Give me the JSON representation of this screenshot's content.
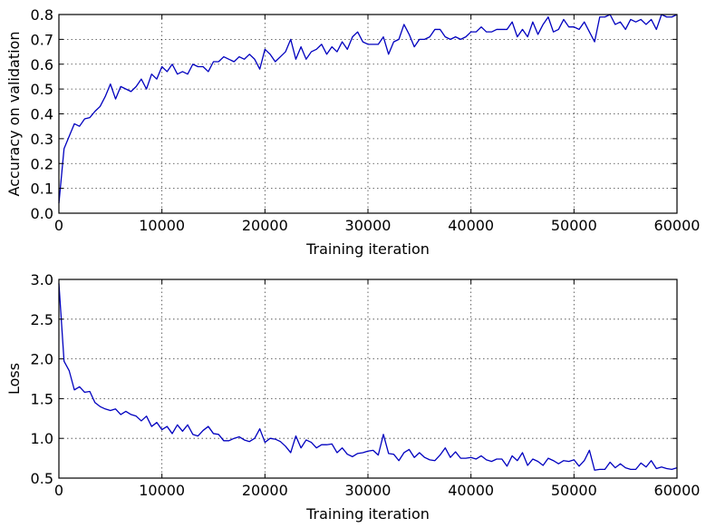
{
  "chart_data": [
    {
      "type": "line",
      "xlabel": "Training iteration",
      "ylabel": "Accuracy on validation",
      "xlim": [
        0,
        60000
      ],
      "ylim": [
        0,
        0.8
      ],
      "xticks": [
        0,
        10000,
        20000,
        30000,
        40000,
        50000,
        60000
      ],
      "xtick_labels": [
        "0",
        "10000",
        "20000",
        "30000",
        "40000",
        "50000",
        "60000"
      ],
      "yticks": [
        0,
        0.1,
        0.2,
        0.3,
        0.4,
        0.5,
        0.6,
        0.7,
        0.8
      ],
      "ytick_labels": [
        "0.0",
        "0.1",
        "0.2",
        "0.3",
        "0.4",
        "0.5",
        "0.6",
        "0.7",
        "0.8"
      ],
      "grid": true,
      "color": "#0000bf",
      "x": [
        0,
        500,
        1000,
        1500,
        2000,
        2500,
        3000,
        3500,
        4000,
        4500,
        5000,
        5500,
        6000,
        6500,
        7000,
        7500,
        8000,
        8500,
        9000,
        9500,
        10000,
        10500,
        11000,
        11500,
        12000,
        12500,
        13000,
        13500,
        14000,
        14500,
        15000,
        15500,
        16000,
        16500,
        17000,
        17500,
        18000,
        18500,
        19000,
        19500,
        20000,
        20500,
        21000,
        21500,
        22000,
        22500,
        23000,
        23500,
        24000,
        24500,
        25000,
        25500,
        26000,
        26500,
        27000,
        27500,
        28000,
        28500,
        29000,
        29500,
        30000,
        30500,
        31000,
        31500,
        32000,
        32500,
        33000,
        33500,
        34000,
        34500,
        35000,
        35500,
        36000,
        36500,
        37000,
        37500,
        38000,
        38500,
        39000,
        39500,
        40000,
        40500,
        41000,
        41500,
        42000,
        42500,
        43000,
        43500,
        44000,
        44500,
        45000,
        45500,
        46000,
        46500,
        47000,
        47500,
        48000,
        48500,
        49000,
        49500,
        50000,
        50500,
        51000,
        51500,
        52000,
        52500,
        53000,
        53500,
        54000,
        54500,
        55000,
        55500,
        56000,
        56500,
        57000,
        57500,
        58000,
        58500,
        59000,
        59500,
        60000
      ],
      "values": [
        0.04,
        0.26,
        0.31,
        0.36,
        0.35,
        0.38,
        0.385,
        0.41,
        0.43,
        0.47,
        0.52,
        0.46,
        0.51,
        0.5,
        0.49,
        0.51,
        0.54,
        0.5,
        0.56,
        0.54,
        0.59,
        0.57,
        0.6,
        0.56,
        0.57,
        0.56,
        0.6,
        0.59,
        0.59,
        0.57,
        0.61,
        0.61,
        0.63,
        0.62,
        0.61,
        0.63,
        0.62,
        0.64,
        0.62,
        0.58,
        0.66,
        0.64,
        0.61,
        0.63,
        0.65,
        0.7,
        0.62,
        0.67,
        0.62,
        0.65,
        0.66,
        0.68,
        0.64,
        0.67,
        0.65,
        0.69,
        0.66,
        0.71,
        0.73,
        0.69,
        0.68,
        0.68,
        0.68,
        0.71,
        0.64,
        0.69,
        0.7,
        0.76,
        0.72,
        0.67,
        0.7,
        0.7,
        0.71,
        0.74,
        0.74,
        0.71,
        0.7,
        0.71,
        0.7,
        0.71,
        0.73,
        0.73,
        0.75,
        0.73,
        0.73,
        0.74,
        0.74,
        0.74,
        0.77,
        0.71,
        0.74,
        0.71,
        0.77,
        0.72,
        0.76,
        0.79,
        0.73,
        0.74,
        0.78,
        0.75,
        0.75,
        0.74,
        0.77,
        0.73,
        0.69,
        0.79,
        0.79,
        0.8,
        0.76,
        0.77,
        0.74,
        0.78,
        0.77,
        0.78,
        0.76,
        0.78,
        0.74,
        0.8,
        0.79,
        0.79,
        0.8
      ]
    },
    {
      "type": "line",
      "xlabel": "Training iteration",
      "ylabel": "Loss",
      "xlim": [
        0,
        60000
      ],
      "ylim": [
        0.5,
        3.0
      ],
      "xticks": [
        0,
        10000,
        20000,
        30000,
        40000,
        50000,
        60000
      ],
      "xtick_labels": [
        "0",
        "10000",
        "20000",
        "30000",
        "40000",
        "50000",
        "60000"
      ],
      "yticks": [
        0.5,
        1.0,
        1.5,
        2.0,
        2.5,
        3.0
      ],
      "ytick_labels": [
        "0.5",
        "1.0",
        "1.5",
        "2.0",
        "2.5",
        "3.0"
      ],
      "grid": true,
      "color": "#0000bf",
      "x": [
        0,
        500,
        1000,
        1500,
        2000,
        2500,
        3000,
        3500,
        4000,
        4500,
        5000,
        5500,
        6000,
        6500,
        7000,
        7500,
        8000,
        8500,
        9000,
        9500,
        10000,
        10500,
        11000,
        11500,
        12000,
        12500,
        13000,
        13500,
        14000,
        14500,
        15000,
        15500,
        16000,
        16500,
        17000,
        17500,
        18000,
        18500,
        19000,
        19500,
        20000,
        20500,
        21000,
        21500,
        22000,
        22500,
        23000,
        23500,
        24000,
        24500,
        25000,
        25500,
        26000,
        26500,
        27000,
        27500,
        28000,
        28500,
        29000,
        29500,
        30000,
        30500,
        31000,
        31500,
        32000,
        32500,
        33000,
        33500,
        34000,
        34500,
        35000,
        35500,
        36000,
        36500,
        37000,
        37500,
        38000,
        38500,
        39000,
        39500,
        40000,
        40500,
        41000,
        41500,
        42000,
        42500,
        43000,
        43500,
        44000,
        44500,
        45000,
        45500,
        46000,
        46500,
        47000,
        47500,
        48000,
        48500,
        49000,
        49500,
        50000,
        50500,
        51000,
        51500,
        52000,
        52500,
        53000,
        53500,
        54000,
        54500,
        55000,
        55500,
        56000,
        56500,
        57000,
        57500,
        58000,
        58500,
        59000,
        59500,
        60000
      ],
      "values": [
        2.95,
        1.97,
        1.85,
        1.61,
        1.65,
        1.58,
        1.59,
        1.45,
        1.4,
        1.37,
        1.35,
        1.37,
        1.3,
        1.34,
        1.3,
        1.28,
        1.22,
        1.28,
        1.15,
        1.2,
        1.11,
        1.15,
        1.06,
        1.17,
        1.09,
        1.17,
        1.05,
        1.03,
        1.1,
        1.15,
        1.06,
        1.05,
        0.97,
        0.97,
        1.0,
        1.02,
        0.98,
        0.96,
        1.0,
        1.12,
        0.95,
        1.0,
        0.99,
        0.96,
        0.9,
        0.82,
        1.03,
        0.88,
        0.98,
        0.95,
        0.88,
        0.92,
        0.92,
        0.93,
        0.82,
        0.88,
        0.8,
        0.77,
        0.81,
        0.82,
        0.84,
        0.85,
        0.79,
        1.05,
        0.81,
        0.8,
        0.72,
        0.82,
        0.86,
        0.76,
        0.82,
        0.76,
        0.73,
        0.72,
        0.79,
        0.88,
        0.76,
        0.83,
        0.75,
        0.75,
        0.76,
        0.74,
        0.78,
        0.73,
        0.71,
        0.74,
        0.74,
        0.65,
        0.78,
        0.72,
        0.82,
        0.66,
        0.74,
        0.71,
        0.66,
        0.75,
        0.72,
        0.68,
        0.72,
        0.71,
        0.73,
        0.65,
        0.72,
        0.85,
        0.6,
        0.61,
        0.61,
        0.7,
        0.63,
        0.68,
        0.63,
        0.61,
        0.61,
        0.69,
        0.64,
        0.72,
        0.62,
        0.64,
        0.62,
        0.61,
        0.63
      ]
    }
  ]
}
